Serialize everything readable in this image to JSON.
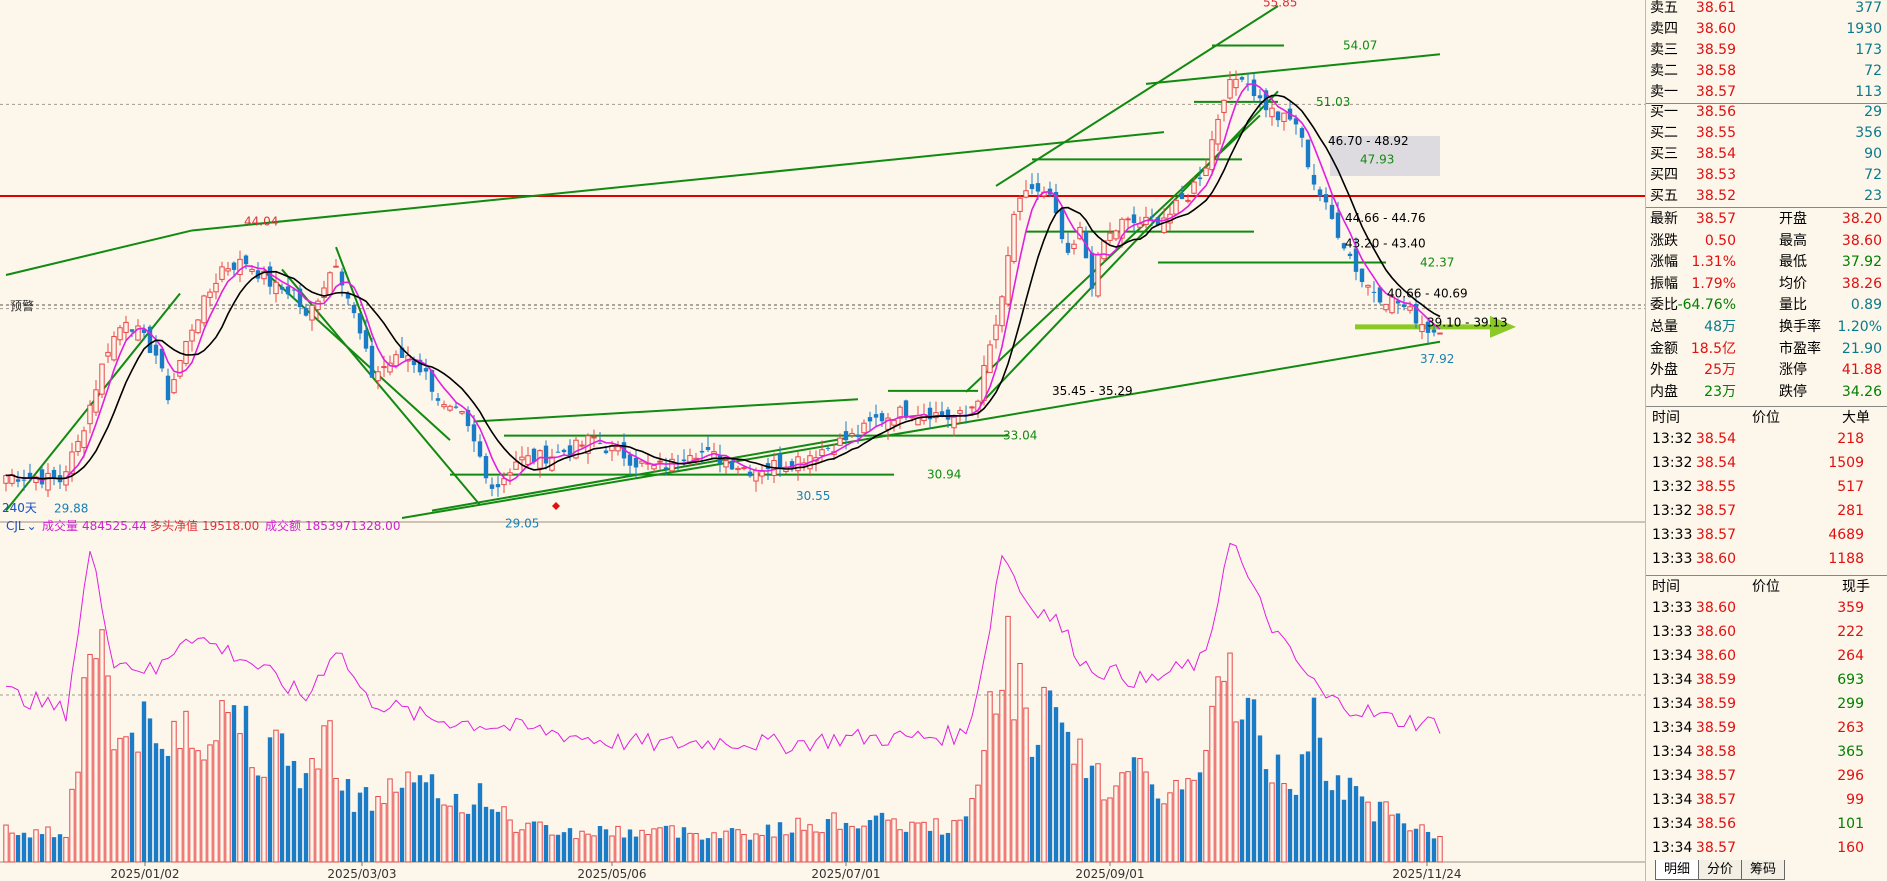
{
  "colors": {
    "bg": "#fdf6ea",
    "up": "#e8494b",
    "down": "#1a7cc6",
    "ma_black": "#000000",
    "ma_magenta": "#e020e0",
    "trend": "#118a11",
    "red_line": "#e00000",
    "arrow": "#8ac926"
  },
  "chart_data": {
    "type": "candlestick",
    "period_label": "240天",
    "indicator_header": {
      "name": "CJL",
      "vol_label": "成交量",
      "vol_value": "484525.44",
      "net_label": "多头净值",
      "net_value": "19518.00",
      "amt_label": "成交额",
      "amt_value": "1853971328.00"
    },
    "warning_label": "预警",
    "x_tick_labels": [
      "2025/01/02",
      "2025/03/03",
      "2025/05/06",
      "2025/07/01",
      "2025/09/01",
      "2025/11/24"
    ],
    "price_range": [
      28.6,
      56.2
    ],
    "key_prices": [
      {
        "label": "55.85",
        "price": 55.85
      },
      {
        "label": "54.07",
        "price": 54.07
      },
      {
        "label": "51.03",
        "price": 51.03
      },
      {
        "label": "46.70 - 48.92",
        "price": 48.92
      },
      {
        "label": "47.93",
        "price": 47.93
      },
      {
        "label": "44.66 - 44.76",
        "price": 44.76
      },
      {
        "label": "43.20 - 43.40",
        "price": 43.4
      },
      {
        "label": "44.04",
        "price": 44.04
      },
      {
        "label": "42.37",
        "price": 42.37
      },
      {
        "label": "40.66 - 40.69",
        "price": 40.69
      },
      {
        "label": "39.10 - 39.13",
        "price": 39.13
      },
      {
        "label": "37.92",
        "price": 37.92
      },
      {
        "label": "35.45 - 35.29",
        "price": 35.45
      },
      {
        "label": "33.04",
        "price": 33.04
      },
      {
        "label": "30.94",
        "price": 30.94
      },
      {
        "label": "30.55",
        "price": 30.55
      },
      {
        "label": "29.88",
        "price": 29.88
      },
      {
        "label": "29.05",
        "price": 29.05
      }
    ],
    "close_anchors": [
      [
        0,
        30.9
      ],
      [
        5,
        30.8
      ],
      [
        9,
        30.6
      ],
      [
        12,
        32.6
      ],
      [
        17,
        37.8
      ],
      [
        20,
        39.4
      ],
      [
        25,
        37.4
      ],
      [
        27,
        35.2
      ],
      [
        31,
        38.9
      ],
      [
        36,
        42.1
      ],
      [
        40,
        42.4
      ],
      [
        45,
        41.0
      ],
      [
        48,
        40.8
      ],
      [
        50,
        39.3
      ],
      [
        55,
        42.5
      ],
      [
        58,
        39.5
      ],
      [
        61,
        36.3
      ],
      [
        64,
        37.0
      ],
      [
        67,
        37.4
      ],
      [
        70,
        36.3
      ],
      [
        73,
        34.5
      ],
      [
        76,
        34.0
      ],
      [
        79,
        31.8
      ],
      [
        80,
        30.7
      ],
      [
        82,
        30.4
      ],
      [
        85,
        31.7
      ],
      [
        88,
        31.8
      ],
      [
        91,
        32.0
      ],
      [
        95,
        32.4
      ],
      [
        98,
        32.9
      ],
      [
        100,
        32.4
      ],
      [
        103,
        32.0
      ],
      [
        105,
        31.6
      ],
      [
        108,
        31.3
      ],
      [
        111,
        31.5
      ],
      [
        114,
        32.3
      ],
      [
        117,
        32.0
      ],
      [
        120,
        31.7
      ],
      [
        124,
        31.2
      ],
      [
        127,
        31.4
      ],
      [
        130,
        31.6
      ],
      [
        133,
        31.9
      ],
      [
        136,
        32.3
      ],
      [
        139,
        32.7
      ],
      [
        142,
        33.1
      ],
      [
        145,
        33.9
      ],
      [
        148,
        34.2
      ],
      [
        151,
        34.4
      ],
      [
        154,
        34.3
      ],
      [
        157,
        34.0
      ],
      [
        160,
        34.1
      ],
      [
        162,
        35.2
      ],
      [
        164,
        37.8
      ],
      [
        166,
        40.2
      ],
      [
        168,
        45.0
      ],
      [
        171,
        46.4
      ],
      [
        174,
        45.8
      ],
      [
        177,
        42.5
      ],
      [
        179,
        44.0
      ],
      [
        181,
        41.3
      ],
      [
        183,
        43.5
      ],
      [
        186,
        44.5
      ],
      [
        190,
        44.5
      ],
      [
        194,
        45.0
      ],
      [
        197,
        46.0
      ],
      [
        200,
        47.7
      ],
      [
        203,
        51.5
      ],
      [
        206,
        52.6
      ],
      [
        209,
        51.1
      ],
      [
        212,
        50.2
      ],
      [
        215,
        49.9
      ],
      [
        218,
        46.7
      ],
      [
        220,
        45.3
      ],
      [
        223,
        43.4
      ],
      [
        226,
        41.4
      ],
      [
        229,
        40.6
      ],
      [
        232,
        40.2
      ],
      [
        235,
        39.4
      ],
      [
        237,
        38.8
      ],
      [
        239,
        38.57
      ]
    ],
    "volume_range": [
      0,
      2600
    ],
    "volume_anchors": [
      [
        0,
        250
      ],
      [
        10,
        240
      ],
      [
        12,
        900
      ],
      [
        14,
        1700
      ],
      [
        16,
        2000
      ],
      [
        18,
        900
      ],
      [
        22,
        1100
      ],
      [
        26,
        850
      ],
      [
        30,
        1200
      ],
      [
        34,
        950
      ],
      [
        38,
        1300
      ],
      [
        42,
        900
      ],
      [
        46,
        850
      ],
      [
        50,
        700
      ],
      [
        54,
        1000
      ],
      [
        58,
        500
      ],
      [
        62,
        500
      ],
      [
        66,
        650
      ],
      [
        70,
        580
      ],
      [
        74,
        500
      ],
      [
        78,
        480
      ],
      [
        80,
        560
      ],
      [
        84,
        300
      ],
      [
        90,
        270
      ],
      [
        95,
        230
      ],
      [
        100,
        250
      ],
      [
        105,
        240
      ],
      [
        110,
        250
      ],
      [
        115,
        230
      ],
      [
        120,
        240
      ],
      [
        125,
        230
      ],
      [
        130,
        270
      ],
      [
        135,
        300
      ],
      [
        140,
        330
      ],
      [
        145,
        320
      ],
      [
        150,
        290
      ],
      [
        155,
        280
      ],
      [
        160,
        300
      ],
      [
        162,
        600
      ],
      [
        164,
        1300
      ],
      [
        166,
        1700
      ],
      [
        168,
        1500
      ],
      [
        171,
        1100
      ],
      [
        174,
        1200
      ],
      [
        177,
        850
      ],
      [
        180,
        800
      ],
      [
        183,
        600
      ],
      [
        186,
        700
      ],
      [
        190,
        650
      ],
      [
        194,
        550
      ],
      [
        197,
        600
      ],
      [
        200,
        780
      ],
      [
        203,
        1550
      ],
      [
        206,
        1400
      ],
      [
        209,
        900
      ],
      [
        212,
        720
      ],
      [
        215,
        630
      ],
      [
        218,
        1400
      ],
      [
        220,
        800
      ],
      [
        223,
        600
      ],
      [
        226,
        450
      ],
      [
        229,
        420
      ],
      [
        232,
        350
      ],
      [
        235,
        300
      ],
      [
        239,
        210
      ]
    ],
    "vol_ma_anchors": [
      [
        0,
        0.52
      ],
      [
        10,
        0.46
      ],
      [
        14,
        0.95
      ],
      [
        18,
        0.62
      ],
      [
        25,
        0.58
      ],
      [
        30,
        0.7
      ],
      [
        40,
        0.62
      ],
      [
        50,
        0.5
      ],
      [
        55,
        0.66
      ],
      [
        60,
        0.5
      ],
      [
        70,
        0.44
      ],
      [
        80,
        0.42
      ],
      [
        90,
        0.4
      ],
      [
        100,
        0.37
      ],
      [
        110,
        0.36
      ],
      [
        120,
        0.37
      ],
      [
        130,
        0.36
      ],
      [
        140,
        0.38
      ],
      [
        150,
        0.38
      ],
      [
        160,
        0.39
      ],
      [
        163,
        0.62
      ],
      [
        166,
        0.95
      ],
      [
        170,
        0.8
      ],
      [
        175,
        0.74
      ],
      [
        180,
        0.6
      ],
      [
        190,
        0.55
      ],
      [
        200,
        0.62
      ],
      [
        204,
        1.0
      ],
      [
        208,
        0.82
      ],
      [
        213,
        0.66
      ],
      [
        220,
        0.5
      ],
      [
        230,
        0.44
      ],
      [
        239,
        0.42
      ]
    ],
    "trend_lines": [
      {
        "p1": [
          0,
          29.0
        ],
        "p2": [
          29,
          40.7
        ]
      },
      {
        "p1": [
          0,
          41.7
        ],
        "p2": [
          31,
          44.1
        ]
      },
      {
        "p1": [
          31,
          44.1
        ],
        "p2": [
          193,
          49.4
        ]
      },
      {
        "p1": [
          43,
          41.9
        ],
        "p2": [
          74,
          32.8
        ]
      },
      {
        "p1": [
          46,
          42.0
        ],
        "p2": [
          79,
          29.3
        ]
      },
      {
        "p1": [
          55,
          43.2
        ],
        "p2": [
          61,
          38.1
        ]
      },
      {
        "p1": [
          78,
          33.8
        ],
        "p2": [
          142,
          35.0
        ]
      },
      {
        "p1": [
          66,
          28.6
        ],
        "p2": [
          239,
          38.1
        ]
      },
      {
        "p1": [
          71,
          29.0
        ],
        "p2": [
          140,
          32.9
        ]
      },
      {
        "p1": [
          160,
          35.4
        ],
        "p2": [
          209,
          50.3
        ]
      },
      {
        "p1": [
          162,
          34.6
        ],
        "p2": [
          212,
          51.6
        ]
      },
      {
        "p1": [
          165,
          46.5
        ],
        "p2": [
          212,
          56.2
        ]
      },
      {
        "p1": [
          190,
          52.0
        ],
        "p2": [
          239,
          53.6
        ]
      }
    ],
    "h_levels": [
      {
        "price": 47.93,
        "x0": 171,
        "x1": 206
      },
      {
        "price": 54.07,
        "x0": 201,
        "x1": 213
      },
      {
        "price": 51.03,
        "x0": 198,
        "x1": 212
      },
      {
        "price": 44.04,
        "x0": 170,
        "x1": 208
      },
      {
        "price": 42.37,
        "x0": 192,
        "x1": 230
      },
      {
        "price": 33.04,
        "x0": 83,
        "x1": 167
      },
      {
        "price": 30.94,
        "x0": 74,
        "x1": 148
      },
      {
        "price": 35.45,
        "x0": 147,
        "x1": 162
      }
    ]
  },
  "quotes": {
    "asks": [
      {
        "label": "卖五",
        "price": "38.61",
        "vol": "377"
      },
      {
        "label": "卖四",
        "price": "38.60",
        "vol": "1930"
      },
      {
        "label": "卖三",
        "price": "38.59",
        "vol": "173"
      },
      {
        "label": "卖二",
        "price": "38.58",
        "vol": "72"
      },
      {
        "label": "卖一",
        "price": "38.57",
        "vol": "113"
      }
    ],
    "bids": [
      {
        "label": "买一",
        "price": "38.56",
        "vol": "29"
      },
      {
        "label": "买二",
        "price": "38.55",
        "vol": "356"
      },
      {
        "label": "买三",
        "price": "38.54",
        "vol": "90"
      },
      {
        "label": "买四",
        "price": "38.53",
        "vol": "72"
      },
      {
        "label": "买五",
        "price": "38.52",
        "vol": "23"
      }
    ],
    "stats": [
      {
        "l1": "最新",
        "v1": "38.57",
        "c1": "red",
        "l2": "开盘",
        "v2": "38.20",
        "c2": "red"
      },
      {
        "l1": "涨跌",
        "v1": "0.50",
        "c1": "red",
        "l2": "最高",
        "v2": "38.60",
        "c2": "red"
      },
      {
        "l1": "涨幅",
        "v1": "1.31%",
        "c1": "red",
        "l2": "最低",
        "v2": "37.92",
        "c2": "green"
      },
      {
        "l1": "振幅",
        "v1": "1.79%",
        "c1": "red",
        "l2": "均价",
        "v2": "38.26",
        "c2": "red"
      },
      {
        "l1": "委比",
        "v1": "-64.76%",
        "c1": "green",
        "l2": "量比",
        "v2": "0.89",
        "c2": "teal"
      },
      {
        "l1": "总量",
        "v1": "48万",
        "c1": "teal",
        "l2": "换手率",
        "v2": "1.20%",
        "c2": "teal"
      },
      {
        "l1": "金额",
        "v1": "18.5亿",
        "c1": "red",
        "l2": "市盈率",
        "v2": "21.90",
        "c2": "teal"
      },
      {
        "l1": "外盘",
        "v1": "25万",
        "c1": "red",
        "l2": "涨停",
        "v2": "41.88",
        "c2": "red"
      },
      {
        "l1": "内盘",
        "v1": "23万",
        "c1": "green",
        "l2": "跌停",
        "v2": "34.26",
        "c2": "green"
      }
    ],
    "detail_header": {
      "time": "时间",
      "price": "价位",
      "vol": "大单"
    },
    "detail": [
      {
        "time": "13:32",
        "price": "38.54",
        "vol": "218"
      },
      {
        "time": "13:32",
        "price": "38.54",
        "vol": "1509"
      },
      {
        "time": "13:32",
        "price": "38.55",
        "vol": "517"
      },
      {
        "time": "13:32",
        "price": "38.57",
        "vol": "281"
      },
      {
        "time": "13:33",
        "price": "38.57",
        "vol": "4689"
      },
      {
        "time": "13:33",
        "price": "38.60",
        "vol": "1188"
      }
    ],
    "ticks_header": {
      "time": "时间",
      "price": "价位",
      "vol": "现手"
    },
    "ticks": [
      {
        "time": "13:33",
        "price": "38.60",
        "vol": "359"
      },
      {
        "time": "13:33",
        "price": "38.60",
        "vol": "222"
      },
      {
        "time": "13:34",
        "price": "38.60",
        "vol": "264"
      },
      {
        "time": "13:34",
        "price": "38.59",
        "vol": "693"
      },
      {
        "time": "13:34",
        "price": "38.59",
        "vol": "299"
      },
      {
        "time": "13:34",
        "price": "38.59",
        "vol": "263"
      },
      {
        "time": "13:34",
        "price": "38.58",
        "vol": "365"
      },
      {
        "time": "13:34",
        "price": "38.57",
        "vol": "296"
      },
      {
        "time": "13:34",
        "price": "38.57",
        "vol": "99"
      },
      {
        "time": "13:34",
        "price": "38.56",
        "vol": "101"
      },
      {
        "time": "13:34",
        "price": "38.57",
        "vol": "160"
      }
    ],
    "tabs": [
      "明细",
      "分价",
      "筹码"
    ]
  }
}
